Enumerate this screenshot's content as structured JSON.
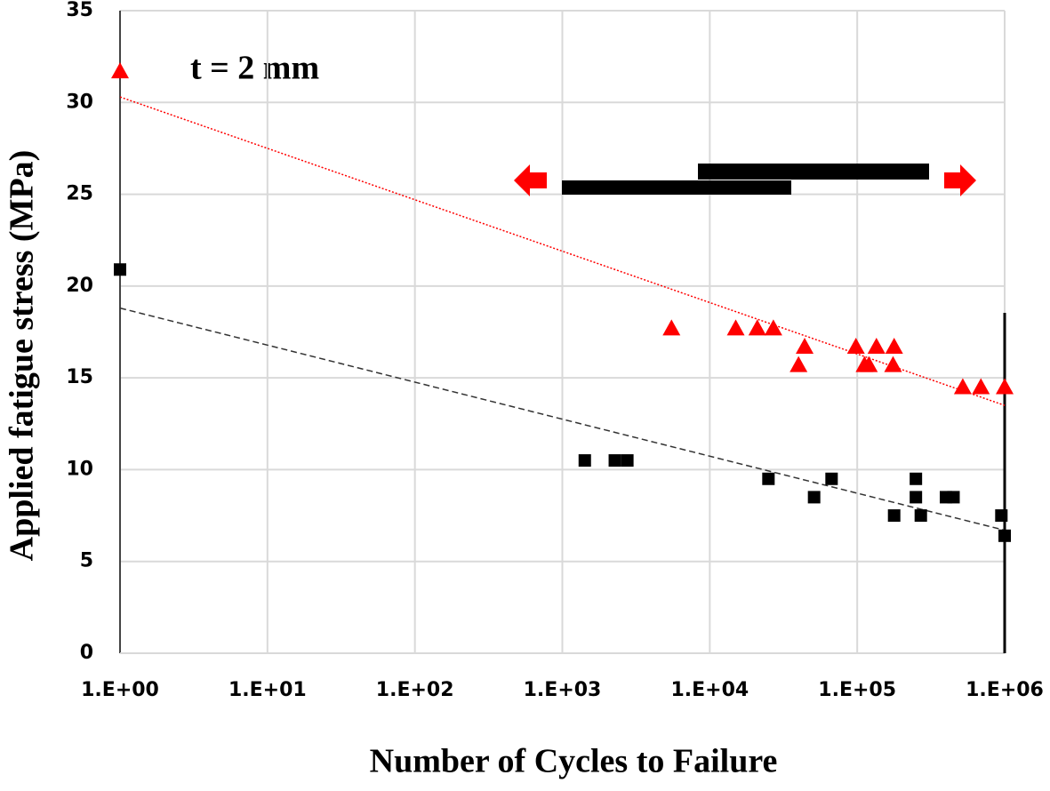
{
  "chart_data": {
    "type": "scatter",
    "annotation": "t = 2 mm",
    "x_label": "Number of Cycles to Failure",
    "y_label": "Applied fatigue stress (MPa)",
    "x_log": true,
    "grid": true,
    "xlim": [
      1,
      1000000
    ],
    "ylim": [
      0,
      35
    ],
    "xticks": [
      {
        "value": 1,
        "label": "1.E+00"
      },
      {
        "value": 10,
        "label": "1.E+01"
      },
      {
        "value": 100,
        "label": "1.E+02"
      },
      {
        "value": 1000,
        "label": "1.E+03"
      },
      {
        "value": 10000,
        "label": "1.E+04"
      },
      {
        "value": 100000,
        "label": "1.E+05"
      },
      {
        "value": 1000000,
        "label": "1.E+06"
      }
    ],
    "yticks": [
      0,
      5,
      10,
      15,
      20,
      25,
      30,
      35
    ],
    "series": [
      {
        "color": "#ff0000",
        "marker": "triangle",
        "x": [
          1,
          5500,
          15000,
          21000,
          27000,
          44000,
          40000,
          98000,
          112000,
          120000,
          135000,
          178000,
          175000,
          520000,
          690000,
          1000000
        ],
        "values": [
          31.7,
          17.7,
          17.7,
          17.7,
          17.7,
          16.7,
          15.7,
          16.7,
          15.7,
          15.7,
          16.7,
          16.7,
          15.7,
          14.5,
          14.5,
          14.5
        ]
      },
      {
        "color": "#000000",
        "marker": "square",
        "x": [
          1,
          1420,
          2270,
          2760,
          25000,
          51000,
          67000,
          178000,
          250000,
          250000,
          270000,
          400000,
          450000,
          950000,
          1000000
        ],
        "values": [
          20.9,
          10.5,
          10.5,
          10.5,
          9.5,
          8.5,
          9.5,
          7.5,
          9.5,
          8.5,
          7.5,
          8.5,
          8.5,
          7.5,
          6.4
        ]
      }
    ],
    "trendlines": [
      {
        "color": "#ff0000",
        "dash": "2,2",
        "x": [
          1,
          1000000
        ],
        "values": [
          30.3,
          13.5
        ]
      },
      {
        "color": "#333333",
        "dash": "7,4",
        "x": [
          1,
          1000000
        ],
        "values": [
          18.8,
          6.7
        ]
      }
    ]
  }
}
